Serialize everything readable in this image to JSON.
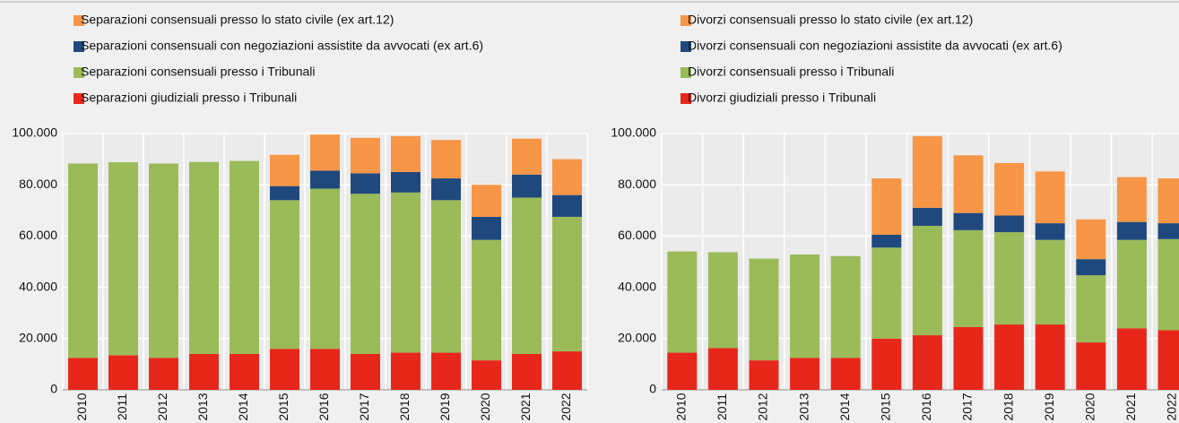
{
  "chart_data": [
    {
      "type": "stacked_bar",
      "categories": [
        "2010",
        "2011",
        "2012",
        "2013",
        "2014",
        "2015",
        "2016",
        "2017",
        "2018",
        "2019",
        "2020",
        "2021",
        "2022"
      ],
      "series": [
        {
          "name": "Separazioni giudiziali presso i Tribunali",
          "color": "#e8271b",
          "values": [
            12500,
            13500,
            12500,
            14000,
            14000,
            16000,
            16000,
            14000,
            14500,
            14500,
            11500,
            14000,
            15000
          ]
        },
        {
          "name": "Separazioni consensuali presso i Tribunali",
          "color": "#9bbb59",
          "values": [
            75800,
            75300,
            75800,
            74900,
            75300,
            58000,
            62500,
            62500,
            62500,
            59500,
            47000,
            61000,
            52500
          ]
        },
        {
          "name": "Separazioni consensuali con negoziazioni assistite da avvocati (ex art.6)",
          "color": "#1f497d",
          "values": [
            null,
            null,
            null,
            null,
            null,
            5500,
            7000,
            8000,
            8000,
            8500,
            9000,
            9000,
            8500
          ]
        },
        {
          "name": "Separazioni consensuali presso lo stato civile (ex art.12)",
          "color": "#f79646",
          "values": [
            null,
            null,
            null,
            null,
            null,
            12200,
            14100,
            13800,
            14000,
            15000,
            12500,
            14000,
            14000
          ]
        }
      ],
      "ylim": [
        0,
        100000
      ],
      "yticks": [
        0,
        {
          "value": 20000,
          "label": "20.000"
        },
        {
          "value": 40000,
          "label": "40.000"
        },
        {
          "value": 60000,
          "label": "60.000"
        },
        {
          "value": 80000,
          "label": "80.000"
        },
        {
          "value": 100000,
          "label": "100.000"
        }
      ],
      "grid": true
    },
    {
      "type": "stacked_bar",
      "categories": [
        "2010",
        "2011",
        "2012",
        "2013",
        "2014",
        "2015",
        "2016",
        "2017",
        "2018",
        "2019",
        "2020",
        "2021",
        "2022"
      ],
      "series": [
        {
          "name": "Divorzi giudiziali presso i Tribunali",
          "color": "#e8271b",
          "values": [
            14500,
            16300,
            11500,
            12500,
            12500,
            20000,
            21300,
            24500,
            25500,
            25500,
            18500,
            24000,
            23300
          ]
        },
        {
          "name": "Divorzi  consensuali presso i Tribunali",
          "color": "#9bbb59",
          "values": [
            39500,
            37400,
            39700,
            40300,
            39700,
            35500,
            42700,
            37800,
            36000,
            33000,
            26200,
            34500,
            35500
          ]
        },
        {
          "name": "Divorzi  consensuali con negoziazioni assistite da avvocati (ex art.6)",
          "color": "#1f497d",
          "values": [
            null,
            null,
            null,
            null,
            null,
            5000,
            7000,
            6700,
            6500,
            6500,
            6300,
            7000,
            6200
          ]
        },
        {
          "name": "Divorzi  consensuali presso lo stato civile (ex art.12)",
          "color": "#f79646",
          "values": [
            null,
            null,
            null,
            null,
            null,
            22000,
            28000,
            22500,
            20500,
            20200,
            15500,
            17500,
            17500
          ]
        }
      ],
      "ylim": [
        0,
        100000
      ],
      "yticks": [
        0,
        {
          "value": 20000,
          "label": "20.000"
        },
        {
          "value": 40000,
          "label": "40.000"
        },
        {
          "value": 60000,
          "label": "60.000"
        },
        {
          "value": 80000,
          "label": "80.000"
        },
        {
          "value": 100000,
          "label": "100.000"
        }
      ],
      "grid": true
    }
  ]
}
